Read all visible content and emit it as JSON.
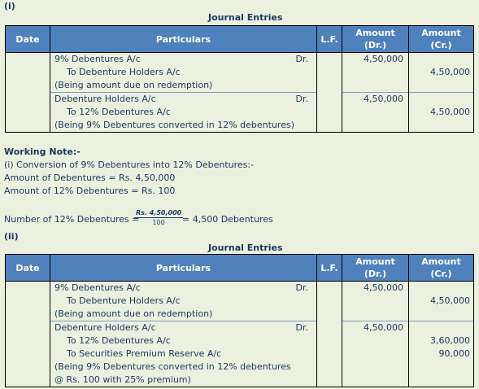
{
  "section1": {
    "label": "(i)",
    "title": "Journal Entries",
    "headers": {
      "date": "Date",
      "particulars": "Particulars",
      "lf": "L.F.",
      "amount_dr": [
        "Amount",
        "(Dr.)"
      ],
      "amount_cr": [
        "Amount",
        "(Cr.)"
      ]
    },
    "entries": [
      {
        "lines": [
          {
            "text": "9% Debentures A/c",
            "dr": "Dr.",
            "amt_dr": "4,50,000",
            "amt_cr": ""
          },
          {
            "text": "To Debenture Holders A/c",
            "indent": true,
            "dr": "",
            "amt_dr": "",
            "amt_cr": "4,50,000"
          },
          {
            "text": "(Being amount due on redemption)",
            "dr": "",
            "amt_dr": "",
            "amt_cr": ""
          }
        ]
      },
      {
        "lines": [
          {
            "text": "Debenture Holders A/c",
            "dr": "Dr.",
            "amt_dr": "4,50,000",
            "amt_cr": ""
          },
          {
            "text": "To 12% Debentures A/c",
            "indent": true,
            "dr": "",
            "amt_dr": "",
            "amt_cr": "4,50,000"
          },
          {
            "text": "(Being 9% Debentures converted in 12% debentures)",
            "dr": "",
            "amt_dr": "",
            "amt_cr": ""
          }
        ]
      }
    ]
  },
  "working_note": {
    "title": "Working Note:-",
    "lines": [
      "(i) Conversion of 9% Debentures into 12% Debentures:-",
      "Amount of Debentures = Rs. 4,50,000",
      "Amount of 12% Debentures = Rs. 100"
    ],
    "formula": {
      "lhs": "Number of 12% Debentures =",
      "numerator": "Rs. 4,50,000",
      "denominator": "100",
      "rhs": "= 4,500 Debentures"
    }
  },
  "section2": {
    "label": "(ii)",
    "title": "Journal Entries",
    "headers": {
      "date": "Date",
      "particulars": "Particulars",
      "lf": "L.F.",
      "amount_dr": [
        "Amount",
        "(Dr.)"
      ],
      "amount_cr": [
        "Amount",
        "(Cr.)"
      ]
    },
    "entries": [
      {
        "lines": [
          {
            "text": "9% Debentures A/c",
            "dr": "Dr.",
            "amt_dr": "4,50,000",
            "amt_cr": ""
          },
          {
            "text": "To Debenture Holders A/c",
            "indent": true,
            "dr": "",
            "amt_dr": "",
            "amt_cr": "4,50,000"
          },
          {
            "text": "(Being amount due on redemption)",
            "dr": "",
            "amt_dr": "",
            "amt_cr": ""
          }
        ]
      },
      {
        "lines": [
          {
            "text": "Debenture Holders A/c",
            "dr": "Dr.",
            "amt_dr": "4,50,000",
            "amt_cr": ""
          },
          {
            "text": "To 12% Debentures A/c",
            "indent": true,
            "dr": "",
            "amt_dr": "",
            "amt_cr": "3,60,000"
          },
          {
            "text": "To Securities Premium Reserve A/c",
            "indent": true,
            "dr": "",
            "amt_dr": "",
            "amt_cr": "90,000"
          },
          {
            "text": "(Being 9% Debentures converted in 12% debentures",
            "dr": "",
            "amt_dr": "",
            "amt_cr": ""
          },
          {
            "text": "@ Rs. 100 with 25% premium)",
            "dr": "",
            "amt_dr": "",
            "amt_cr": ""
          }
        ]
      }
    ]
  }
}
